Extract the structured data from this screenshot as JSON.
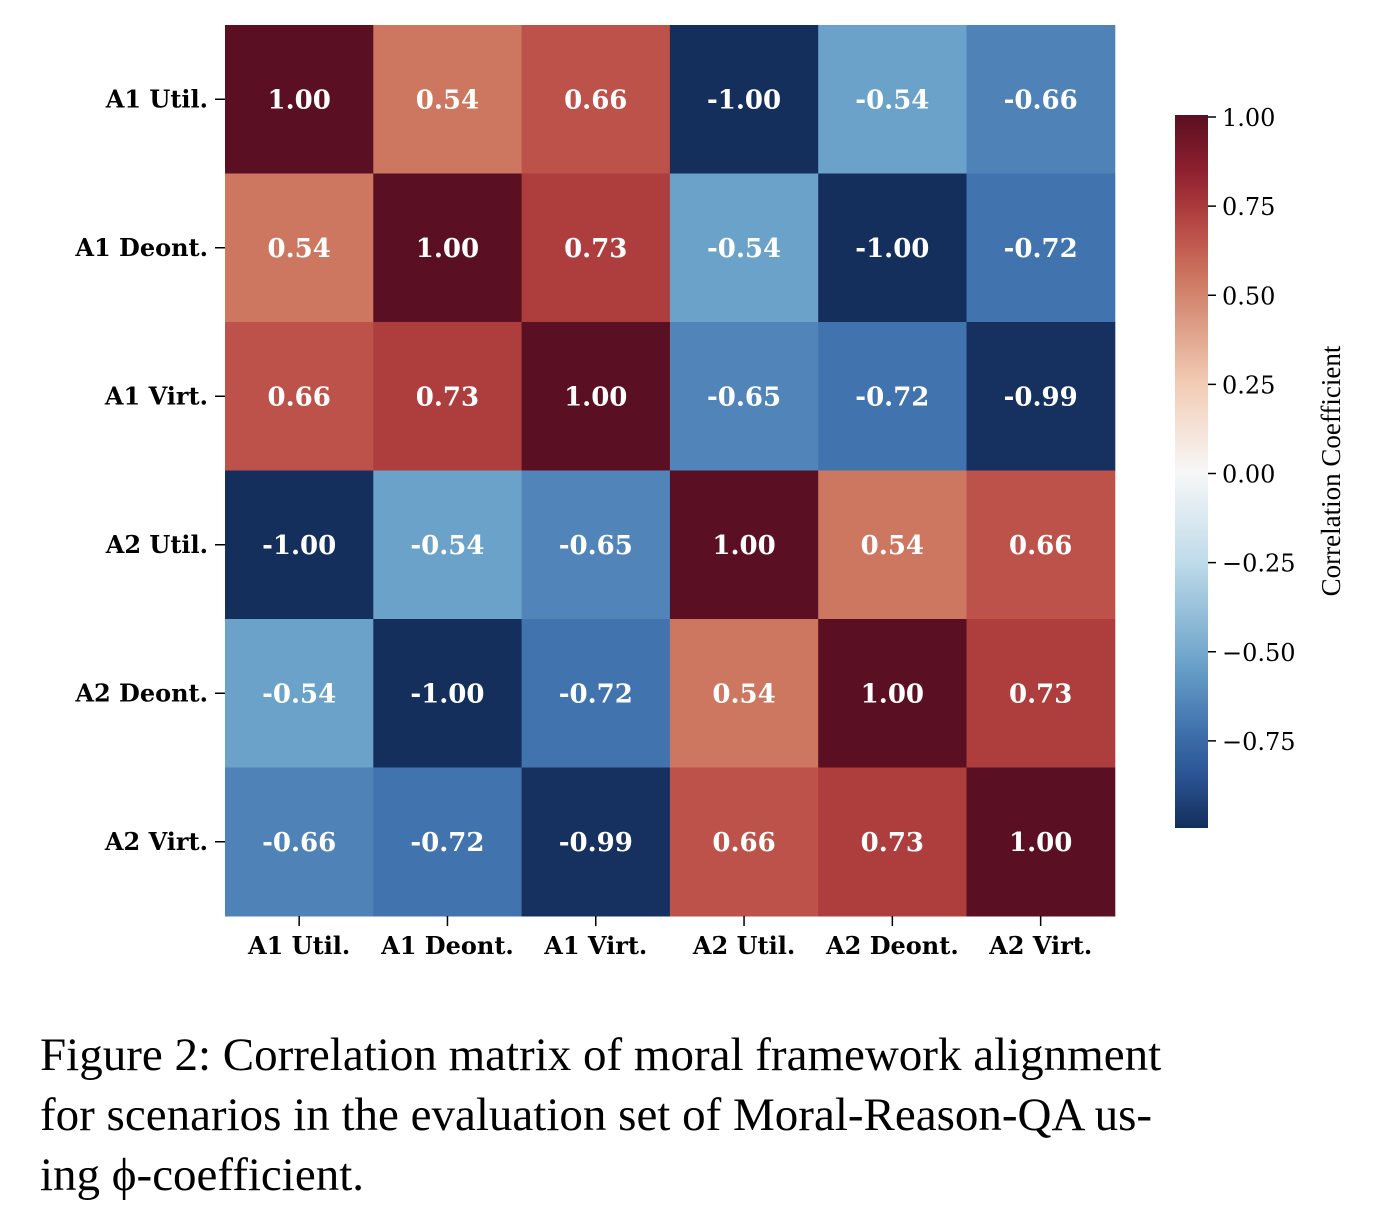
{
  "chart_data": {
    "type": "heatmap",
    "row_labels": [
      "A1 Util.",
      "A1 Deont.",
      "A1 Virt.",
      "A2 Util.",
      "A2 Deont.",
      "A2 Virt."
    ],
    "col_labels": [
      "A1 Util.",
      "A1 Deont.",
      "A1 Virt.",
      "A2 Util.",
      "A2 Deont.",
      "A2 Virt."
    ],
    "values": [
      [
        1.0,
        0.54,
        0.66,
        -1.0,
        -0.54,
        -0.66
      ],
      [
        0.54,
        1.0,
        0.73,
        -0.54,
        -1.0,
        -0.72
      ],
      [
        0.66,
        0.73,
        1.0,
        -0.65,
        -0.72,
        -0.99
      ],
      [
        -1.0,
        -0.54,
        -0.65,
        1.0,
        0.54,
        0.66
      ],
      [
        -0.54,
        -1.0,
        -0.72,
        0.54,
        1.0,
        0.73
      ],
      [
        -0.66,
        -0.72,
        -0.99,
        0.66,
        0.73,
        1.0
      ]
    ],
    "colormap": "RdBu_r",
    "vmin": -1.0,
    "vmax": 1.0,
    "colorbar": {
      "label": "Correlation Coefficient",
      "ticks": [
        1.0,
        0.75,
        0.5,
        0.25,
        0.0,
        -0.25,
        -0.5,
        -0.75
      ],
      "tick_labels": [
        "1.00",
        "0.75",
        "0.50",
        "0.25",
        "0.00",
        "−0.25",
        "−0.50",
        "−0.75"
      ]
    },
    "annotation_color": "#ffffff"
  },
  "caption": {
    "lines": [
      "Figure 2: Correlation matrix of moral framework alignment",
      "for scenarios in the evaluation set of Moral-Reason-QA us-",
      "ing ϕ-coefficient."
    ]
  }
}
